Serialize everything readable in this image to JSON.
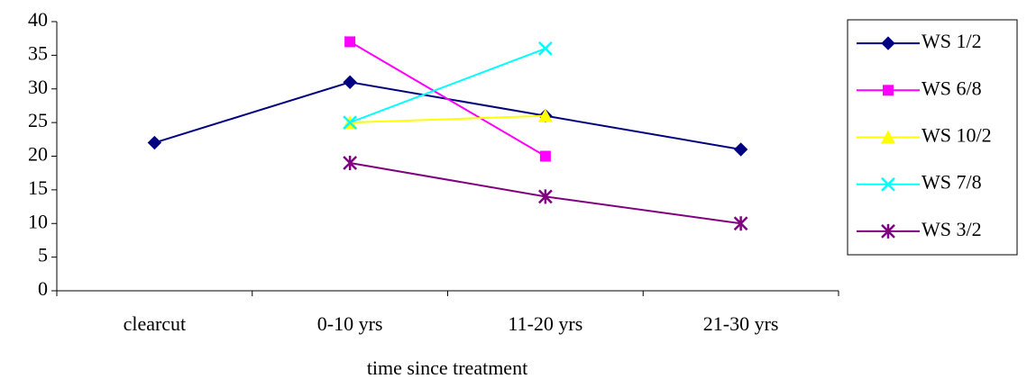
{
  "chart_data": {
    "type": "line",
    "xlabel": "time since treatment",
    "categories": [
      "clearcut",
      "0-10 yrs",
      "11-20 yrs",
      "21-30 yrs"
    ],
    "series": [
      {
        "name": "WS 1/2",
        "color": "#000080",
        "marker": "diamond",
        "values": [
          22,
          31,
          26,
          21
        ]
      },
      {
        "name": "WS 6/8",
        "color": "#ff00ff",
        "marker": "square",
        "values": [
          null,
          37,
          20,
          null
        ]
      },
      {
        "name": "WS 10/2",
        "color": "#ffff00",
        "marker": "triangle",
        "values": [
          null,
          25,
          26,
          null
        ]
      },
      {
        "name": "WS 7/8",
        "color": "#00ffff",
        "marker": "x",
        "values": [
          null,
          25,
          36,
          null
        ]
      },
      {
        "name": "WS 3/2",
        "color": "#800080",
        "marker": "star",
        "values": [
          null,
          19,
          14,
          10
        ]
      }
    ],
    "ylim": [
      0,
      40
    ],
    "yticks": [
      0,
      5,
      10,
      15,
      20,
      25,
      30,
      35,
      40
    ],
    "grid": false,
    "legend": "right"
  }
}
